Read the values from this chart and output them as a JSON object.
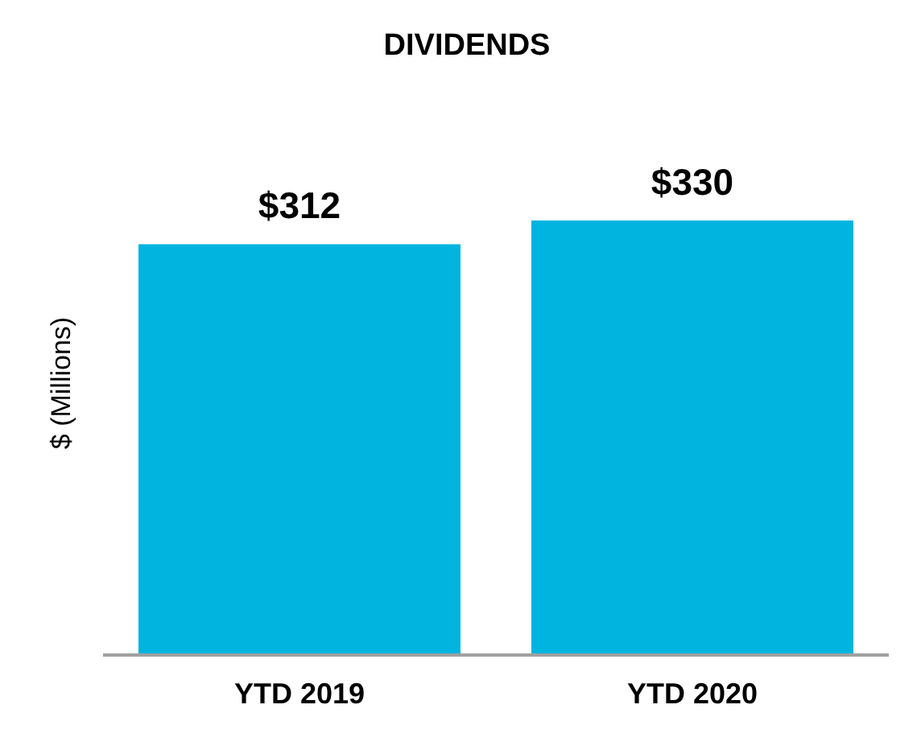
{
  "chart_data": {
    "type": "bar",
    "title": "DIVIDENDS",
    "ylabel": "$ (Millions)",
    "categories": [
      "YTD 2019",
      "YTD 2020"
    ],
    "values": [
      312,
      330
    ],
    "value_labels": [
      "$312",
      "$330"
    ],
    "color": "#00b4e0"
  }
}
